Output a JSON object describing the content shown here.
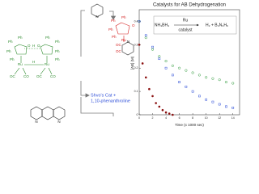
{
  "diagram": {
    "caption": "Shvo's Cat +",
    "caption2": "1,10-phenanthroline",
    "pyridine_n": "N",
    "phen_n": [
      "N",
      "N"
    ],
    "shvo_labels": [
      "Ph",
      "Ph",
      "Ph",
      "O",
      "H",
      "O",
      "Ph",
      "Ph",
      "Ph",
      "Ph",
      "Ru",
      "H",
      "Ru",
      "OC",
      "CO",
      "OC",
      "CO",
      "Ph"
    ],
    "product_labels": [
      "Ph",
      "Ph",
      "Ph",
      "Ph",
      "O",
      "Ru",
      "OC",
      "OC",
      "N"
    ]
  },
  "chart_data": {
    "type": "scatter",
    "title": "Catalysts for AB Dehydrogenation",
    "x_label": "Time (x 1000 sec)",
    "y_label": "[AB] (M)",
    "inset": {
      "reactant": "NH₃BH₃",
      "catalyst_top": "Ru",
      "catalyst_bottom": "catalyst",
      "products": "H₂ + B₃N₃H₆"
    },
    "xlim": [
      0,
      15
    ],
    "ylim": [
      0,
      0.45
    ],
    "xticks": [
      0,
      2,
      4,
      6,
      8,
      10,
      12,
      14
    ],
    "yticks": [
      0,
      0.1,
      0.2,
      0.3,
      0.4
    ],
    "series": [
      {
        "color": "#2e9a3a",
        "x": [
          0,
          1,
          2,
          3,
          4,
          5,
          6,
          7,
          8,
          9,
          10,
          11,
          12,
          13,
          14
        ],
        "values": [
          0.4,
          0.33,
          0.28,
          0.25,
          0.23,
          0.21,
          0.2,
          0.19,
          0.18,
          0.17,
          0.16,
          0.155,
          0.15,
          0.14,
          0.135
        ]
      },
      {
        "color": "#3050d8",
        "x": [
          0,
          1,
          2,
          3,
          4,
          5,
          6,
          7,
          8,
          9,
          10,
          11,
          12,
          13,
          14
        ],
        "values": [
          0.4,
          0.34,
          0.29,
          0.24,
          0.2,
          0.17,
          0.14,
          0.12,
          0.1,
          0.08,
          0.065,
          0.055,
          0.045,
          0.035,
          0.03
        ]
      },
      {
        "color": "#8b1010",
        "x": [
          0,
          0.5,
          1,
          1.5,
          2,
          2.5,
          3,
          3.5,
          4,
          4.5,
          5
        ],
        "values": [
          0.3,
          0.22,
          0.16,
          0.11,
          0.08,
          0.05,
          0.035,
          0.02,
          0.01,
          0.005,
          0
        ]
      }
    ]
  }
}
